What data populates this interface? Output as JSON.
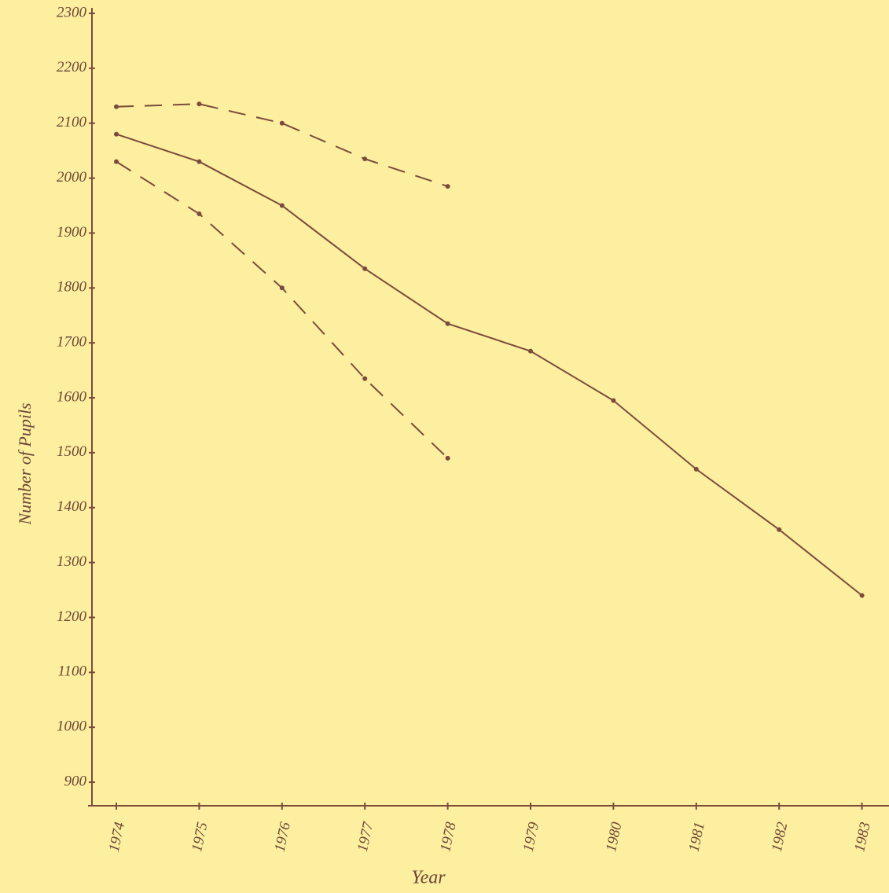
{
  "chart_data": {
    "type": "line",
    "y_label": "Number of Pupils",
    "x_label": "Year",
    "categories": [
      "1974",
      "1975",
      "1976",
      "1977",
      "1978",
      "1979",
      "1980",
      "1981",
      "1982",
      "1983"
    ],
    "series": [
      {
        "color": "#7b4b3c",
        "dashed": false,
        "values": [
          2080,
          2030,
          1950,
          1835,
          1735,
          1685,
          1595,
          1470,
          1360,
          1240
        ]
      },
      {
        "color": "#7b4b3c",
        "dashed": true,
        "values": [
          2130,
          2135,
          2100,
          2035,
          1985,
          null,
          null,
          null,
          null,
          null
        ]
      },
      {
        "color": "#7b4b3c",
        "dashed": true,
        "values": [
          2030,
          1935,
          1800,
          1635,
          1490,
          null,
          null,
          null,
          null,
          null
        ]
      }
    ],
    "ylim": [
      860,
      2300
    ],
    "yticks": [
      900,
      1000,
      1100,
      1200,
      1300,
      1400,
      1500,
      1600,
      1700,
      1800,
      1900,
      2000,
      2100,
      2200,
      2300
    ],
    "grid": false
  }
}
